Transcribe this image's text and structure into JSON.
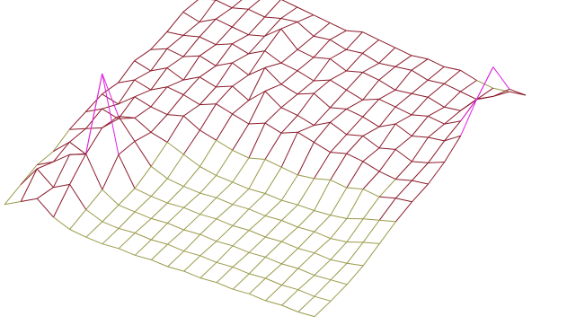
{
  "chart_data": {
    "type": "surface",
    "zlim": [
      0,
      100
    ],
    "colormap": [
      "#9a9a4a",
      "#8b1a2a",
      "#e020e0"
    ],
    "z": [
      [
        6,
        14,
        22,
        10,
        4,
        2,
        1,
        2,
        1,
        2,
        1,
        2,
        1,
        2,
        1,
        2,
        1,
        2,
        1,
        2
      ],
      [
        10,
        30,
        18,
        26,
        8,
        2,
        1,
        2,
        1,
        2,
        1,
        2,
        1,
        2,
        1,
        2,
        1,
        2,
        1,
        2
      ],
      [
        14,
        22,
        34,
        40,
        12,
        3,
        2,
        1,
        2,
        1,
        2,
        1,
        2,
        1,
        2,
        1,
        2,
        1,
        2,
        3
      ],
      [
        12,
        26,
        20,
        100,
        30,
        4,
        2,
        1,
        2,
        1,
        2,
        1,
        2,
        1,
        2,
        1,
        2,
        1,
        3,
        6
      ],
      [
        18,
        24,
        30,
        46,
        28,
        10,
        4,
        2,
        1,
        2,
        1,
        2,
        1,
        2,
        1,
        2,
        1,
        3,
        8,
        12
      ],
      [
        20,
        28,
        24,
        30,
        22,
        18,
        12,
        6,
        3,
        2,
        1,
        2,
        1,
        2,
        2,
        3,
        5,
        10,
        14,
        18
      ],
      [
        22,
        18,
        30,
        26,
        24,
        28,
        20,
        16,
        12,
        10,
        14,
        12,
        10,
        12,
        16,
        14,
        18,
        16,
        20,
        22
      ],
      [
        18,
        26,
        22,
        30,
        28,
        24,
        30,
        26,
        22,
        28,
        24,
        30,
        26,
        22,
        26,
        24,
        20,
        18,
        22,
        24
      ],
      [
        24,
        20,
        28,
        22,
        30,
        26,
        32,
        24,
        38,
        28,
        26,
        22,
        30,
        24,
        28,
        22,
        26,
        20,
        24,
        30
      ],
      [
        20,
        26,
        24,
        30,
        26,
        34,
        28,
        40,
        30,
        26,
        32,
        24,
        28,
        26,
        22,
        30,
        24,
        28,
        30,
        40
      ],
      [
        22,
        24,
        28,
        26,
        32,
        28,
        36,
        30,
        28,
        24,
        30,
        26,
        22,
        28,
        26,
        24,
        28,
        26,
        34,
        60
      ],
      [
        26,
        22,
        30,
        28,
        26,
        30,
        42,
        28,
        26,
        30,
        24,
        28,
        26,
        22,
        24,
        26,
        22,
        24,
        40,
        75
      ],
      [
        24,
        28,
        26,
        30,
        28,
        32,
        34,
        26,
        28,
        24,
        26,
        22,
        24,
        26,
        22,
        24,
        22,
        20,
        28,
        40
      ],
      [
        22,
        26,
        24,
        28,
        30,
        28,
        26,
        24,
        22,
        26,
        24,
        22,
        20,
        22,
        20,
        22,
        18,
        16,
        18,
        20
      ]
    ]
  }
}
